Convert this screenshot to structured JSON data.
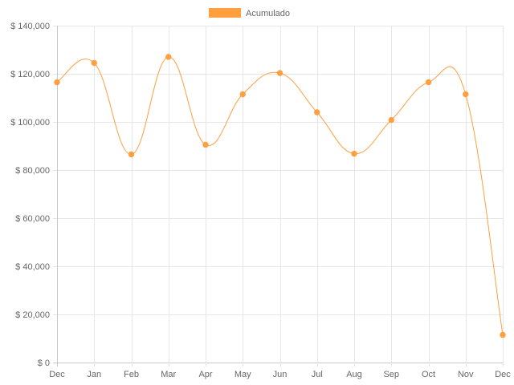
{
  "chart_data": {
    "type": "line",
    "categories": [
      "Dec",
      "Jan",
      "Feb",
      "Mar",
      "Apr",
      "May",
      "Jun",
      "Jul",
      "Aug",
      "Sep",
      "Oct",
      "Nov",
      "Dec"
    ],
    "series": [
      {
        "name": "Acumulado",
        "color": "#ff9f40",
        "values": [
          116500,
          124500,
          86500,
          127000,
          90500,
          111500,
          120300,
          104000,
          86800,
          100800,
          116500,
          111500,
          11500
        ]
      }
    ],
    "ylim": [
      0,
      140000
    ],
    "y_ticks": [
      0,
      20000,
      40000,
      60000,
      80000,
      100000,
      120000,
      140000
    ],
    "y_tick_labels": [
      "$ 0",
      "$ 20,000",
      "$ 40,000",
      "$ 60,000",
      "$ 80,000",
      "$ 100,000",
      "$ 120,000",
      "$ 140,000"
    ],
    "grid": true,
    "legend_position": "top",
    "curve": "smooth"
  }
}
